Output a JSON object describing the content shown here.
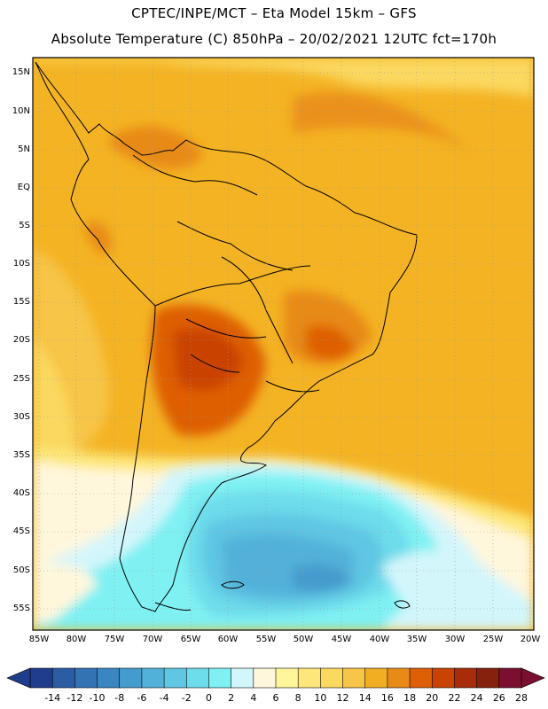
{
  "header": {
    "line1": "CPTEC/INPE/MCT –  Eta Model 15km – GFS",
    "line2": "Absolute Temperature (C) 850hPa – 20/02/2021 12UTC fct=170h"
  },
  "map": {
    "lat_labels": [
      "15N",
      "10N",
      "5N",
      "EQ",
      "5S",
      "10S",
      "15S",
      "20S",
      "25S",
      "30S",
      "35S",
      "40S",
      "45S",
      "50S",
      "55S"
    ],
    "lon_labels": [
      "85W",
      "80W",
      "75W",
      "70W",
      "65W",
      "60W",
      "55W",
      "50W",
      "45W",
      "40W",
      "35W",
      "30W",
      "25W",
      "20W"
    ]
  },
  "legend": {
    "labels": [
      "-14",
      "-12",
      "-10",
      "-8",
      "-6",
      "-4",
      "-2",
      "0",
      "2",
      "4",
      "6",
      "8",
      "10",
      "12",
      "14",
      "16",
      "18",
      "20",
      "22",
      "24",
      "26",
      "28"
    ],
    "colors": [
      "#1f3d8c",
      "#2a5da3",
      "#3373b4",
      "#3a86c2",
      "#449bcd",
      "#52b1d9",
      "#5fc6e3",
      "#6ddceb",
      "#7ff1f3",
      "#d3f6fb",
      "#fff7dc",
      "#fff59a",
      "#fde77a",
      "#fbd85e",
      "#f7c547",
      "#f1ae22",
      "#e88a16",
      "#de5f05",
      "#c94206",
      "#a82c0a",
      "#86210e",
      "#7a0f2f"
    ]
  }
}
